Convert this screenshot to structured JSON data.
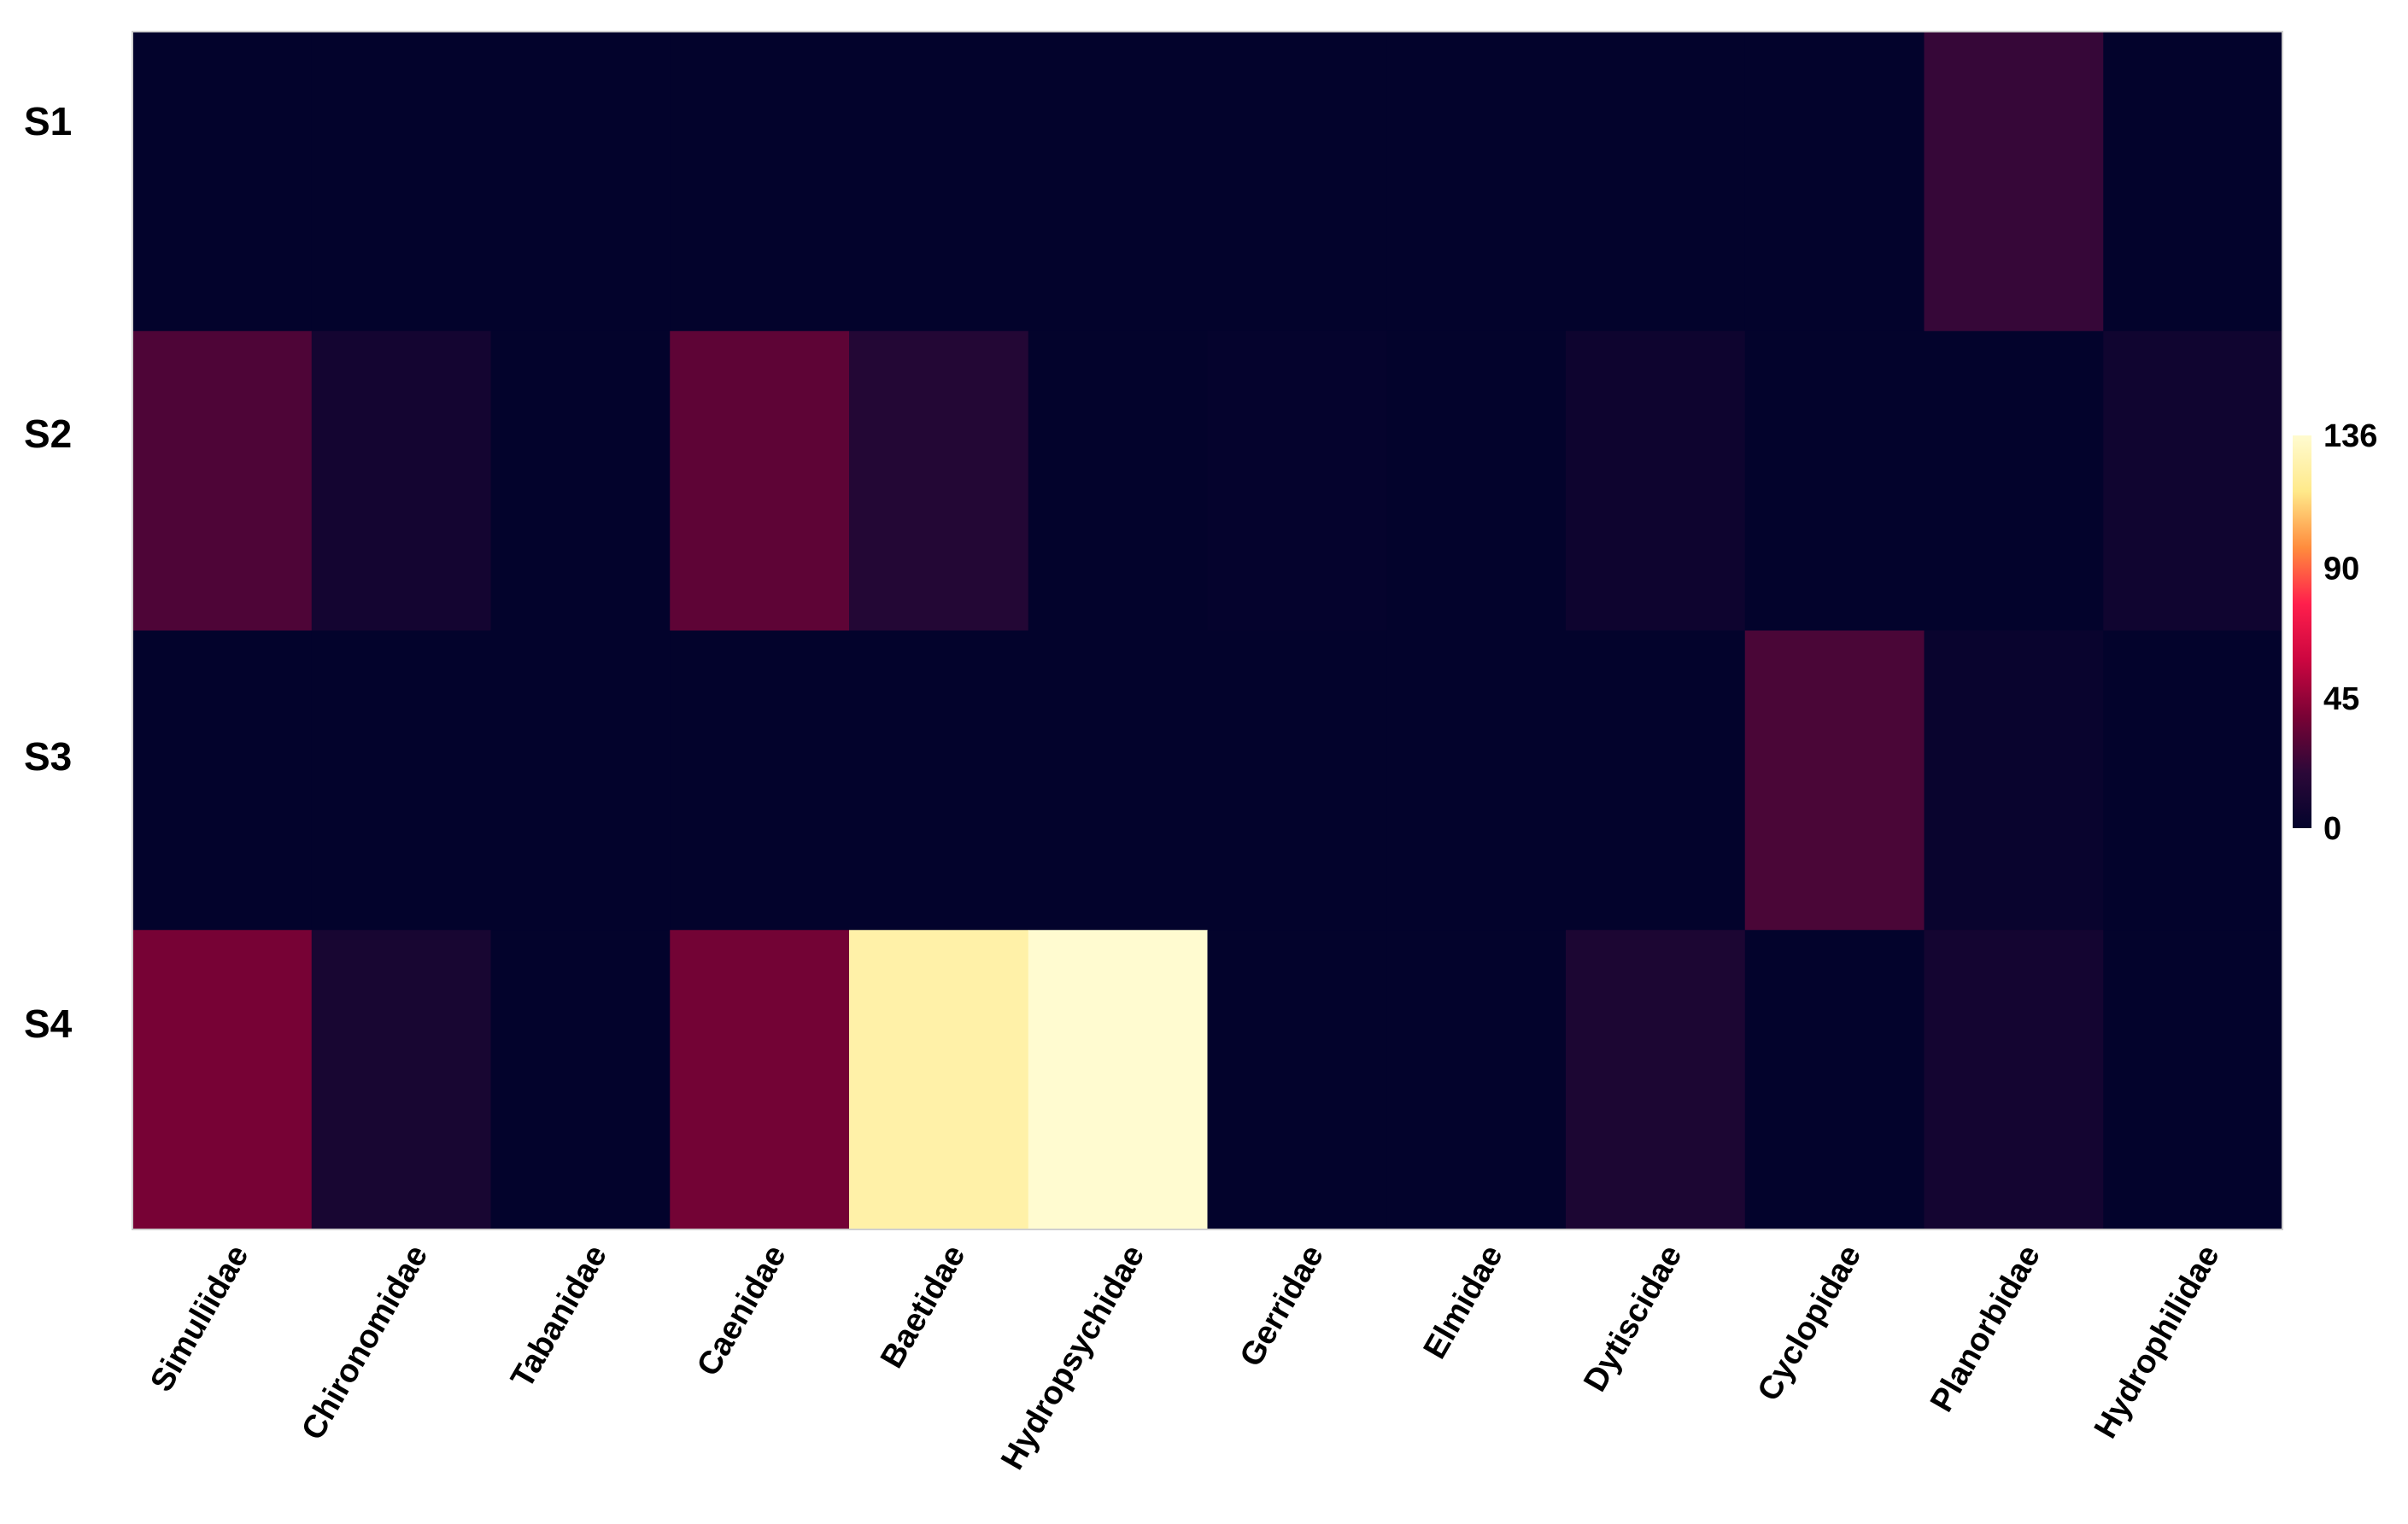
{
  "chart_data": {
    "type": "heatmap",
    "title": "",
    "xlabel": "",
    "ylabel": "",
    "rows": [
      "S1",
      "S2",
      "S3",
      "S4"
    ],
    "columns": [
      "Simuliidae",
      "Chironomidae",
      "Tabanidae",
      "Caenidae",
      "Baetidae",
      "Hydropsychidae",
      "Gerridae",
      "Elmidae",
      "Dytiscidae",
      "Cyclopidae",
      "Planorbidae",
      "Hydrophilidae"
    ],
    "values": [
      [
        0,
        0,
        0,
        0,
        0,
        0,
        0,
        0,
        0,
        0,
        22,
        0
      ],
      [
        28,
        8,
        0,
        32,
        15,
        0,
        1,
        0,
        5,
        0,
        0,
        6
      ],
      [
        0,
        0,
        0,
        0,
        0,
        0,
        0,
        0,
        0,
        27,
        3,
        0
      ],
      [
        38,
        10,
        0,
        37,
        125,
        136,
        0,
        0,
        12,
        0,
        8,
        0
      ]
    ],
    "colorscale": {
      "min": 0,
      "max": 136,
      "ticks": [
        0,
        45,
        90,
        136
      ],
      "stops": [
        "#03032c",
        "#2c0838",
        "#7a0235",
        "#cc0640",
        "#ff1f4c",
        "#ff8c3d",
        "#ffe98a",
        "#fffbd0"
      ]
    },
    "legend": "right"
  }
}
